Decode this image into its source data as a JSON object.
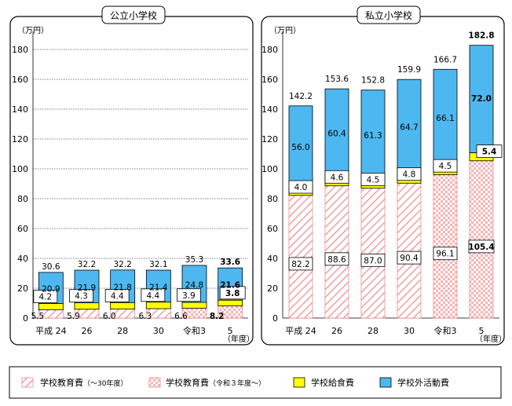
{
  "y_unit": "（万円）",
  "x_unit": "（年度）",
  "colors": {
    "school_ed_old": "#f4a6a6",
    "school_ed_new": "#f4a6a6",
    "lunch": "#ffff00",
    "extracurricular": "#4db8f0",
    "frame": "#000000"
  },
  "legend": {
    "items": [
      {
        "label": "学校教育費",
        "note": "（～30年度）",
        "icon": "diagonal-hatch-swatch"
      },
      {
        "label": "学校教育費",
        "note": "（令和３年度～）",
        "icon": "checker-swatch"
      },
      {
        "label": "学校給食費",
        "icon": "yellow-swatch"
      },
      {
        "label": "学校外活動費",
        "icon": "blue-swatch"
      }
    ]
  },
  "chart_data": [
    {
      "type": "bar",
      "title": "公立小学校",
      "categories": [
        "平成 24",
        "26",
        "28",
        "30",
        "令和3",
        "5"
      ],
      "ylim": [
        0,
        190
      ],
      "yticks": [
        0,
        20,
        40,
        60,
        80,
        100,
        120,
        140,
        160,
        180
      ],
      "grid": true,
      "stacked": true,
      "bold_category": "5",
      "series": [
        {
          "name": "学校教育費",
          "note": "（～30年度）",
          "values": [
            5.5,
            5.9,
            6.0,
            6.3,
            null,
            null
          ]
        },
        {
          "name": "学校教育費",
          "note": "（令和３年度～）",
          "values": [
            null,
            null,
            null,
            null,
            6.6,
            8.2
          ]
        },
        {
          "name": "学校給食費",
          "values": [
            4.2,
            4.3,
            4.4,
            4.4,
            3.9,
            3.8
          ]
        },
        {
          "name": "学校外活動費",
          "values": [
            20.9,
            21.9,
            21.8,
            21.4,
            24.8,
            21.6
          ]
        }
      ],
      "totals": [
        30.6,
        32.2,
        32.2,
        32.1,
        35.3,
        33.6
      ]
    },
    {
      "type": "bar",
      "title": "私立小学校",
      "categories": [
        "平成 24",
        "26",
        "28",
        "30",
        "令和3",
        "5"
      ],
      "ylim": [
        0,
        190
      ],
      "yticks": [
        0,
        20,
        40,
        60,
        80,
        100,
        120,
        140,
        160,
        180
      ],
      "grid": false,
      "stacked": true,
      "bold_category": "5",
      "series": [
        {
          "name": "学校教育費",
          "note": "（～30年度）",
          "values": [
            82.2,
            88.6,
            87.0,
            90.4,
            null,
            null
          ]
        },
        {
          "name": "学校教育費",
          "note": "（令和３年度～）",
          "values": [
            null,
            null,
            null,
            null,
            96.1,
            105.4
          ]
        },
        {
          "name": "学校給食費",
          "values": [
            4.0,
            4.6,
            4.5,
            4.8,
            4.5,
            5.4
          ]
        },
        {
          "name": "学校外活動費",
          "values": [
            56.0,
            60.4,
            61.3,
            64.7,
            66.1,
            72.0
          ]
        }
      ],
      "totals": [
        142.2,
        153.6,
        152.8,
        159.9,
        166.7,
        182.8
      ]
    }
  ]
}
